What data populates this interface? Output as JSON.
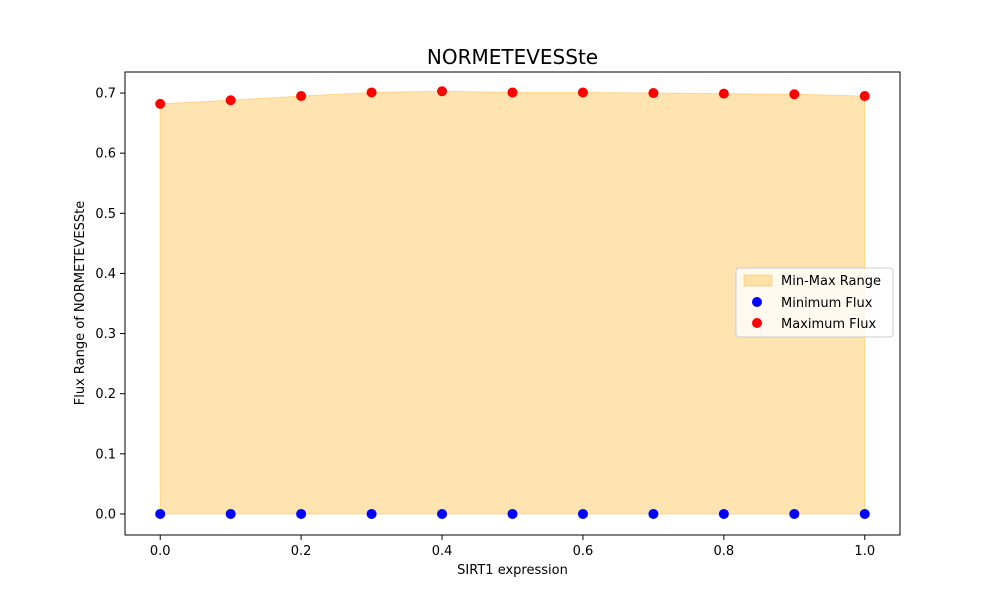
{
  "chart_data": {
    "type": "scatter",
    "title": "NORMETEVESSte",
    "xlabel": "SIRT1 expression",
    "ylabel": "Flux Range of NORMETEVESSte",
    "xlim": [
      -0.05,
      1.05
    ],
    "ylim": [
      -0.035,
      0.735
    ],
    "x_ticks": [
      0.0,
      0.2,
      0.4,
      0.6,
      0.8,
      1.0
    ],
    "x_tick_labels": [
      "0.0",
      "0.2",
      "0.4",
      "0.6",
      "0.8",
      "1.0"
    ],
    "y_ticks": [
      0.0,
      0.1,
      0.2,
      0.3,
      0.4,
      0.5,
      0.6,
      0.7
    ],
    "y_tick_labels": [
      "0.0",
      "0.1",
      "0.2",
      "0.3",
      "0.4",
      "0.5",
      "0.6",
      "0.7"
    ],
    "x": [
      0.0,
      0.1,
      0.2,
      0.3,
      0.4,
      0.5,
      0.6,
      0.7,
      0.8,
      0.9,
      1.0
    ],
    "series": [
      {
        "name": "Minimum Flux",
        "color": "#0000ff",
        "values": [
          0,
          0,
          0,
          0,
          0,
          0,
          0,
          0,
          0,
          0,
          0
        ]
      },
      {
        "name": "Maximum Flux",
        "color": "#ff0000",
        "values": [
          0.682,
          0.688,
          0.695,
          0.701,
          0.703,
          0.701,
          0.701,
          0.7,
          0.699,
          0.698,
          0.695
        ]
      }
    ],
    "fill": {
      "name": "Min-Max Range",
      "color": "#ffa500",
      "opacity": 0.3
    },
    "grid": false,
    "legend_position": "center-right"
  }
}
